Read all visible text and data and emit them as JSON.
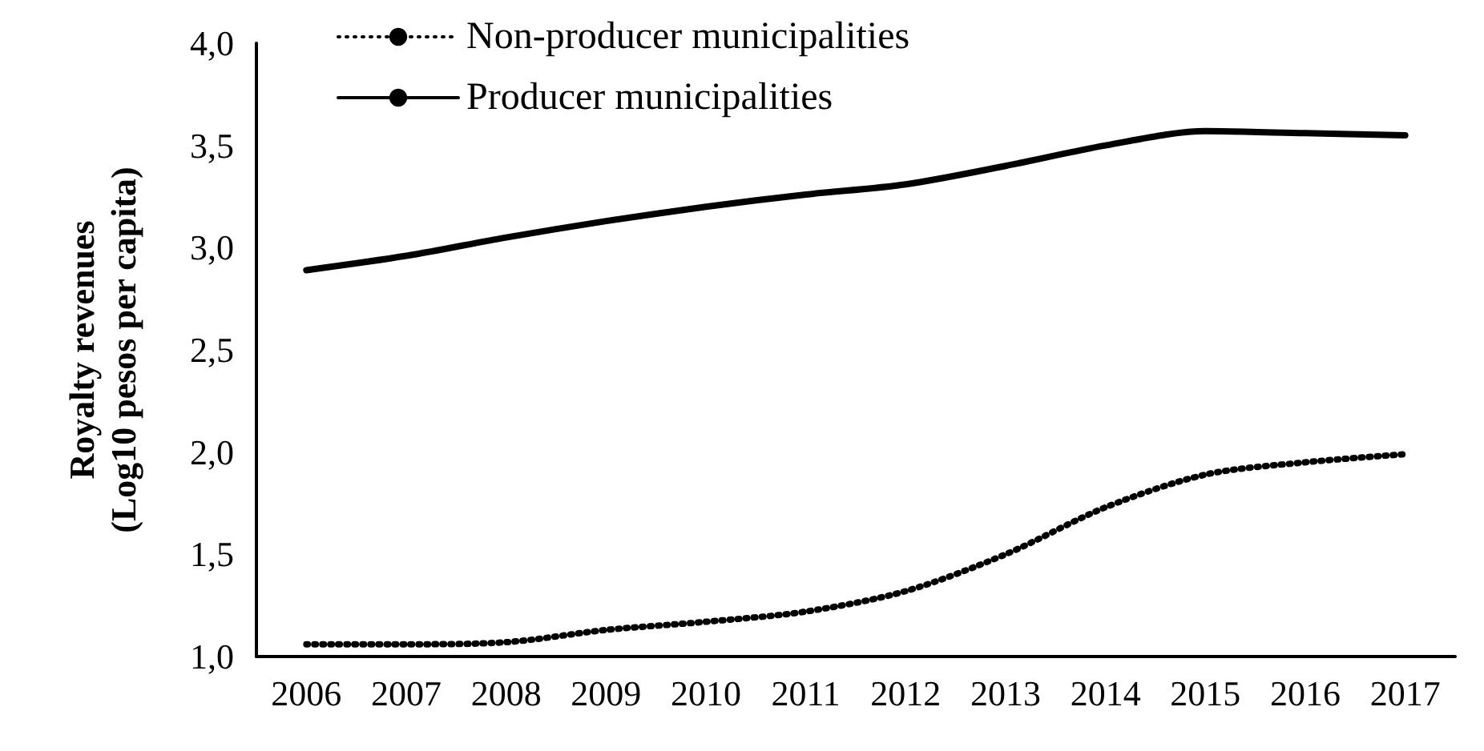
{
  "chart_data": {
    "type": "line",
    "ylabel": "Royalty revenues\n(Log10 pesos per capita)",
    "categories": [
      "2006",
      "2007",
      "2008",
      "2009",
      "2010",
      "2011",
      "2012",
      "2013",
      "2014",
      "2015",
      "2016",
      "2017"
    ],
    "series": [
      {
        "name": "Non-producer municipalities",
        "color": "#000000",
        "line_style": "dotted",
        "values": [
          1.06,
          1.06,
          1.07,
          1.13,
          1.17,
          1.22,
          1.32,
          1.5,
          1.73,
          1.89,
          1.95,
          1.99
        ]
      },
      {
        "name": "Producer municipalities",
        "color": "#000000",
        "line_style": "solid",
        "values": [
          2.89,
          2.96,
          3.05,
          3.13,
          3.2,
          3.26,
          3.31,
          3.4,
          3.5,
          3.57,
          3.56,
          3.55
        ]
      }
    ],
    "ylim": [
      1,
      4
    ],
    "yticks": [
      {
        "value": 1,
        "label": "1,0"
      },
      {
        "value": 1.5,
        "label": "1,5"
      },
      {
        "value": 2,
        "label": "2,0"
      },
      {
        "value": 2.5,
        "label": "2,5"
      },
      {
        "value": 3,
        "label": "3,0"
      },
      {
        "value": 3.5,
        "label": "3,5"
      },
      {
        "value": 4,
        "label": "4,0"
      }
    ],
    "grid": false,
    "legend": "top left",
    "marker": "none"
  }
}
